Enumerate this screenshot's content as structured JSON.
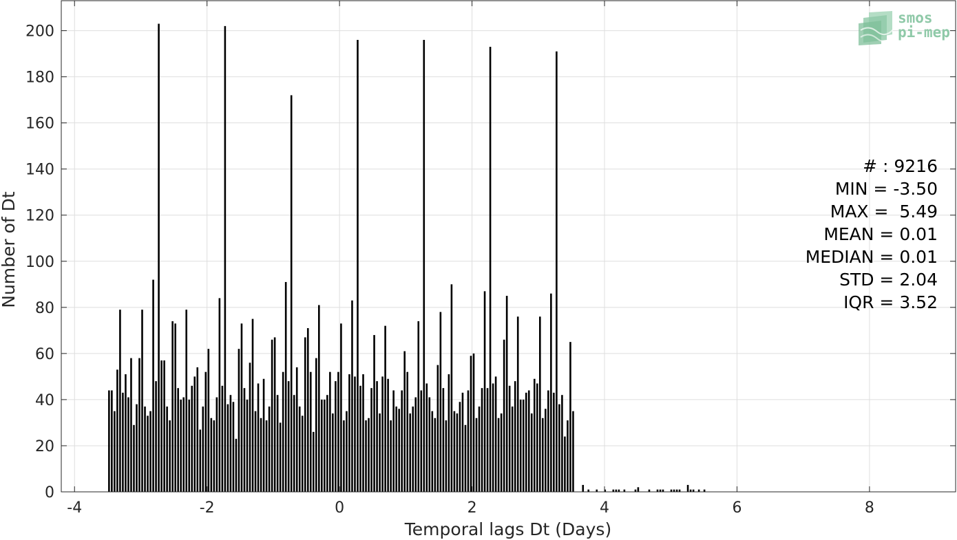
{
  "chart_data": {
    "type": "bar",
    "title": "",
    "xlabel": "Temporal lags Dt (Days)",
    "ylabel": "Number of Dt",
    "xlim": [
      -4.2,
      9.3
    ],
    "ylim": [
      0,
      213
    ],
    "xticks": [
      -4,
      -2,
      0,
      2,
      4,
      6,
      8
    ],
    "xtick_labels": [
      "-4",
      "-2",
      "0",
      "2",
      "4",
      "6",
      "8"
    ],
    "yticks": [
      0,
      20,
      40,
      60,
      80,
      100,
      120,
      140,
      160,
      180,
      200
    ],
    "ytick_labels": [
      "0",
      "20",
      "40",
      "60",
      "80",
      "100",
      "120",
      "140",
      "160",
      "180",
      "200"
    ],
    "grid": true,
    "bar_color": "#000000",
    "bin_width": 0.0417,
    "x_start": -3.5,
    "values": [
      44,
      44,
      35,
      53,
      79,
      43,
      51,
      41,
      58,
      29,
      38,
      58,
      79,
      37,
      33,
      35,
      92,
      48,
      203,
      57,
      57,
      37,
      31,
      74,
      73,
      45,
      40,
      41,
      79,
      40,
      46,
      50,
      54,
      27,
      37,
      52,
      62,
      32,
      31,
      41,
      84,
      46,
      202,
      38,
      42,
      39,
      23,
      62,
      73,
      45,
      40,
      56,
      75,
      35,
      47,
      32,
      49,
      31,
      37,
      66,
      67,
      42,
      30,
      52,
      91,
      48,
      172,
      42,
      54,
      37,
      33,
      67,
      71,
      52,
      26,
      58,
      81,
      40,
      40,
      42,
      52,
      34,
      48,
      52,
      73,
      31,
      35,
      51,
      83,
      50,
      196,
      46,
      51,
      31,
      32,
      45,
      68,
      48,
      34,
      50,
      72,
      49,
      31,
      44,
      37,
      36,
      44,
      61,
      52,
      34,
      37,
      41,
      74,
      44,
      196,
      47,
      41,
      35,
      32,
      55,
      78,
      45,
      31,
      51,
      90,
      35,
      34,
      39,
      43,
      29,
      44,
      59,
      60,
      32,
      37,
      45,
      87,
      45,
      193,
      47,
      50,
      32,
      34,
      66,
      85,
      46,
      37,
      48,
      76,
      40,
      40,
      43,
      44,
      34,
      49,
      47,
      76,
      32,
      36,
      44,
      86,
      43,
      191,
      38,
      42,
      24,
      31,
      65,
      35
    ],
    "tail_values": [
      {
        "x": 3.675,
        "y": 3
      },
      {
        "x": 3.758,
        "y": 1
      },
      {
        "x": 3.883,
        "y": 1
      },
      {
        "x": 4.008,
        "y": 1
      },
      {
        "x": 4.133,
        "y": 1
      },
      {
        "x": 4.175,
        "y": 1
      },
      {
        "x": 4.217,
        "y": 1
      },
      {
        "x": 4.3,
        "y": 1
      },
      {
        "x": 4.467,
        "y": 1
      },
      {
        "x": 4.508,
        "y": 2
      },
      {
        "x": 4.675,
        "y": 1
      },
      {
        "x": 4.8,
        "y": 1
      },
      {
        "x": 4.842,
        "y": 1
      },
      {
        "x": 4.883,
        "y": 1
      },
      {
        "x": 5.008,
        "y": 1
      },
      {
        "x": 5.05,
        "y": 1
      },
      {
        "x": 5.092,
        "y": 1
      },
      {
        "x": 5.133,
        "y": 1
      },
      {
        "x": 5.258,
        "y": 3
      },
      {
        "x": 5.3,
        "y": 1
      },
      {
        "x": 5.342,
        "y": 1
      },
      {
        "x": 5.425,
        "y": 1
      },
      {
        "x": 5.508,
        "y": 1
      }
    ]
  },
  "stats": {
    "count": "# : 9216",
    "min": "MIN = -3.50",
    "max": "MAX =  5.49",
    "mean": "MEAN = 0.01",
    "median": "MEDIAN = 0.01",
    "std": "STD = 2.04",
    "iqr": "IQR = 3.52"
  },
  "logo": {
    "line1": "smos",
    "line2": "pi-mep",
    "color": "#8fc9a8"
  }
}
